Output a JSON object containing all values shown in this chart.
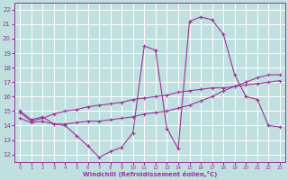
{
  "xlabel": "Windchill (Refroidissement éolien,°C)",
  "xlim": [
    -0.5,
    23.5
  ],
  "ylim": [
    11.5,
    22.5
  ],
  "xticks": [
    0,
    1,
    2,
    3,
    4,
    5,
    6,
    7,
    8,
    9,
    10,
    11,
    12,
    13,
    14,
    15,
    16,
    17,
    18,
    19,
    20,
    21,
    22,
    23
  ],
  "yticks": [
    12,
    13,
    14,
    15,
    16,
    17,
    18,
    19,
    20,
    21,
    22
  ],
  "bg_color": "#c0e0e0",
  "grid_color": "#b0d8d8",
  "line_color": "#993399",
  "line1_x": [
    0,
    1,
    2,
    3,
    4,
    5,
    6,
    7,
    8,
    9,
    10,
    11,
    12,
    13,
    14,
    15,
    16,
    17,
    18,
    19,
    20,
    21,
    22,
    23
  ],
  "line1_y": [
    15.0,
    14.4,
    14.6,
    14.1,
    14.0,
    13.3,
    12.6,
    11.8,
    12.2,
    12.5,
    13.5,
    19.5,
    19.2,
    13.8,
    12.4,
    21.2,
    21.5,
    21.3,
    20.3,
    17.5,
    16.0,
    15.8,
    14.0,
    13.9
  ],
  "line2_x": [
    0,
    1,
    2,
    3,
    4,
    5,
    6,
    7,
    8,
    9,
    10,
    11,
    12,
    13,
    14,
    15,
    16,
    17,
    18,
    19,
    20,
    21,
    22,
    23
  ],
  "line2_y": [
    14.5,
    14.2,
    14.3,
    14.1,
    14.1,
    14.2,
    14.3,
    14.3,
    14.4,
    14.5,
    14.6,
    14.8,
    14.9,
    15.0,
    15.2,
    15.4,
    15.7,
    16.0,
    16.4,
    16.7,
    17.0,
    17.3,
    17.5,
    17.5
  ],
  "line3_x": [
    0,
    1,
    2,
    3,
    4,
    5,
    6,
    7,
    8,
    9,
    10,
    11,
    12,
    13,
    14,
    15,
    16,
    17,
    18,
    19,
    20,
    21,
    22,
    23
  ],
  "line3_y": [
    14.9,
    14.3,
    14.5,
    14.8,
    15.0,
    15.1,
    15.3,
    15.4,
    15.5,
    15.6,
    15.8,
    15.9,
    16.0,
    16.1,
    16.3,
    16.4,
    16.5,
    16.6,
    16.6,
    16.7,
    16.8,
    16.9,
    17.0,
    17.1
  ]
}
